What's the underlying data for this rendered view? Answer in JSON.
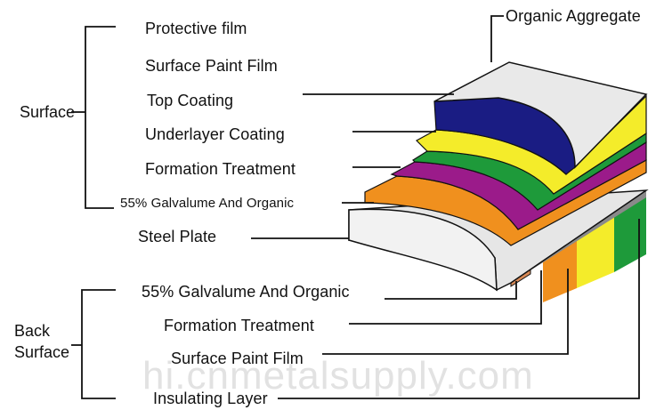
{
  "groups": {
    "surface": "Surface",
    "back_surface_line1": "Back",
    "back_surface_line2": "Surface"
  },
  "labels": {
    "organic_aggregate": "Organic Aggregate",
    "protective_film": "Protective film",
    "surface_paint_film": "Surface Paint Film",
    "top_coating": "Top Coating",
    "underlayer_coating": "Underlayer Coating",
    "formation_treatment": "Formation Treatment",
    "galvalume_top": "55% Galvalume And Organic",
    "steel_plate": "Steel Plate",
    "galvalume_back": "55% Galvalume And Organic",
    "formation_treatment_back": "Formation Treatment",
    "surface_paint_film_back": "Surface Paint Film",
    "insulating_layer": "Insulating Layer"
  },
  "watermark": "hi.cnmetalsupply.com",
  "colors": {
    "top_gray": "#e9e9e9",
    "navy": "#1a1c83",
    "yellow": "#f4ec2a",
    "green": "#1e9a3a",
    "purple": "#9b1b8a",
    "orange": "#f0901e",
    "steel": "#e6e6e6",
    "copper": "#d98a56"
  }
}
